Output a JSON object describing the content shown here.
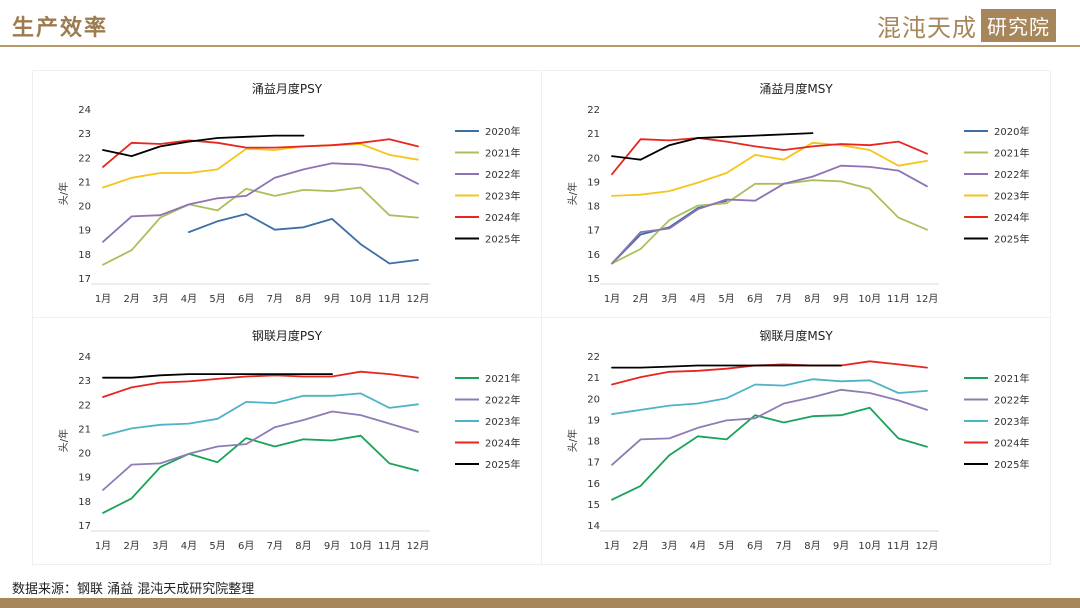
{
  "header": {
    "title": "生产效率",
    "logo_main": "混沌天成",
    "logo_box": "研究院"
  },
  "footer": {
    "source": "数据来源：钢联 涌益 混沌天成研究院整理"
  },
  "colors": {
    "2020年": "#3b6fa5",
    "2021年": "#a9c05a",
    "2022年": "#8e72b4",
    "2023年": "#f5c518",
    "2024年": "#e8261f",
    "2025年": "#000000",
    "gl2021年": "#1aa35a",
    "gl2022年": "#8f7bb5",
    "gl2023年": "#4fb3c7",
    "gl2024年": "#e8261f",
    "gl2025年": "#000000"
  },
  "chart_data": [
    {
      "type": "line",
      "title": "涌益月度PSY",
      "ylabel": "头/年",
      "categories": [
        "1月",
        "2月",
        "3月",
        "4月",
        "5月",
        "6月",
        "7月",
        "8月",
        "9月",
        "10月",
        "11月",
        "12月"
      ],
      "ylim": [
        17,
        24
      ],
      "yticks": [
        17,
        18,
        19,
        20,
        21,
        22,
        23,
        24
      ],
      "legend_position": "right",
      "series": [
        {
          "name": "2020年",
          "color": "#3b6fa5",
          "values": [
            null,
            null,
            null,
            18.9,
            19.35,
            19.65,
            19.0,
            19.1,
            19.45,
            18.4,
            17.6,
            17.75
          ]
        },
        {
          "name": "2021年",
          "color": "#a9c05a",
          "values": [
            17.55,
            18.15,
            19.5,
            20.05,
            19.8,
            20.7,
            20.4,
            20.65,
            20.6,
            20.75,
            19.6,
            19.5
          ]
        },
        {
          "name": "2022年",
          "color": "#8e72b4",
          "values": [
            18.5,
            19.55,
            19.6,
            20.05,
            20.3,
            20.4,
            21.15,
            21.5,
            21.75,
            21.7,
            21.5,
            20.9
          ]
        },
        {
          "name": "2023年",
          "color": "#f5c518",
          "values": [
            20.75,
            21.15,
            21.35,
            21.35,
            21.5,
            22.35,
            22.3,
            22.45,
            22.5,
            22.55,
            22.1,
            21.9
          ]
        },
        {
          "name": "2024年",
          "color": "#e8261f",
          "values": [
            21.6,
            22.6,
            22.55,
            22.7,
            22.6,
            22.4,
            22.4,
            22.45,
            22.5,
            22.6,
            22.75,
            22.45
          ]
        },
        {
          "name": "2025年",
          "color": "#000000",
          "values": [
            22.3,
            22.05,
            22.45,
            22.65,
            22.8,
            22.85,
            22.9,
            22.9,
            null,
            null,
            null,
            null
          ]
        }
      ]
    },
    {
      "type": "line",
      "title": "涌益月度MSY",
      "ylabel": "头/年",
      "categories": [
        "1月",
        "2月",
        "3月",
        "4月",
        "5月",
        "6月",
        "7月",
        "8月",
        "9月",
        "10月",
        "11月",
        "12月"
      ],
      "ylim": [
        15,
        22
      ],
      "yticks": [
        15,
        16,
        17,
        18,
        19,
        20,
        21,
        22
      ],
      "legend_position": "right",
      "series": [
        {
          "name": "2020年",
          "color": "#3b6fa5",
          "values": [
            15.6,
            16.8,
            17.1,
            17.9,
            18.2,
            null,
            null,
            null,
            null,
            null,
            null,
            null
          ]
        },
        {
          "name": "2021年",
          "color": "#a9c05a",
          "values": [
            15.6,
            16.2,
            17.4,
            18.0,
            18.1,
            18.9,
            18.9,
            19.05,
            19.0,
            18.7,
            17.5,
            17.0
          ]
        },
        {
          "name": "2022年",
          "color": "#8e72b4",
          "values": [
            15.6,
            16.9,
            17.05,
            17.85,
            18.25,
            18.2,
            18.9,
            19.2,
            19.65,
            19.6,
            19.45,
            18.8
          ]
        },
        {
          "name": "2023年",
          "color": "#f5c518",
          "values": [
            18.4,
            18.45,
            18.6,
            18.95,
            19.35,
            20.1,
            19.9,
            20.6,
            20.5,
            20.3,
            19.65,
            19.85
          ]
        },
        {
          "name": "2024年",
          "color": "#e8261f",
          "values": [
            19.3,
            20.75,
            20.7,
            20.8,
            20.65,
            20.45,
            20.3,
            20.45,
            20.55,
            20.5,
            20.65,
            20.15
          ]
        },
        {
          "name": "2025年",
          "color": "#000000",
          "values": [
            20.05,
            19.9,
            20.5,
            20.8,
            20.85,
            20.9,
            20.95,
            21.0,
            null,
            null,
            null,
            null
          ]
        }
      ]
    },
    {
      "type": "line",
      "title": "钢联月度PSY",
      "ylabel": "头/年",
      "categories": [
        "1月",
        "2月",
        "3月",
        "4月",
        "5月",
        "6月",
        "7月",
        "8月",
        "9月",
        "10月",
        "11月",
        "12月"
      ],
      "ylim": [
        17,
        24
      ],
      "yticks": [
        17,
        18,
        19,
        20,
        21,
        22,
        23,
        24
      ],
      "legend_position": "right",
      "series": [
        {
          "name": "2021年",
          "color": "#1aa35a",
          "values": [
            17.5,
            18.1,
            19.4,
            19.95,
            19.6,
            20.6,
            20.25,
            20.55,
            20.5,
            20.7,
            19.55,
            19.25
          ]
        },
        {
          "name": "2022年",
          "color": "#8f7bb5",
          "values": [
            18.45,
            19.5,
            19.55,
            19.95,
            20.25,
            20.35,
            21.05,
            21.35,
            21.7,
            21.55,
            21.2,
            20.85
          ]
        },
        {
          "name": "2023年",
          "color": "#4fb3c7",
          "values": [
            20.7,
            21.0,
            21.15,
            21.2,
            21.4,
            22.1,
            22.05,
            22.35,
            22.35,
            22.45,
            21.85,
            22.0
          ]
        },
        {
          "name": "2024年",
          "color": "#e8261f",
          "values": [
            22.3,
            22.7,
            22.9,
            22.95,
            23.05,
            23.15,
            23.2,
            23.15,
            23.15,
            23.35,
            23.25,
            23.1
          ]
        },
        {
          "name": "2025年",
          "color": "#000000",
          "values": [
            23.1,
            23.1,
            23.2,
            23.25,
            23.25,
            23.25,
            23.25,
            23.25,
            23.25,
            null,
            null,
            null
          ]
        }
      ]
    },
    {
      "type": "line",
      "title": "钢联月度MSY",
      "ylabel": "头/年",
      "categories": [
        "1月",
        "2月",
        "3月",
        "4月",
        "5月",
        "6月",
        "7月",
        "8月",
        "9月",
        "10月",
        "11月",
        "12月"
      ],
      "ylim": [
        14,
        22
      ],
      "yticks": [
        14,
        15,
        16,
        17,
        18,
        19,
        20,
        21,
        22
      ],
      "legend_position": "right",
      "series": [
        {
          "name": "2021年",
          "color": "#1aa35a",
          "values": [
            15.2,
            15.85,
            17.3,
            18.2,
            18.05,
            19.2,
            18.85,
            19.15,
            19.2,
            19.55,
            18.1,
            17.7
          ]
        },
        {
          "name": "2022年",
          "color": "#8f7bb5",
          "values": [
            16.85,
            18.05,
            18.1,
            18.6,
            18.95,
            19.05,
            19.75,
            20.05,
            20.4,
            20.25,
            19.9,
            19.45
          ]
        },
        {
          "name": "2023年",
          "color": "#4fb3c7",
          "values": [
            19.25,
            19.45,
            19.65,
            19.75,
            20.0,
            20.65,
            20.6,
            20.9,
            20.8,
            20.85,
            20.25,
            20.35
          ]
        },
        {
          "name": "2024年",
          "color": "#e8261f",
          "values": [
            20.65,
            21.0,
            21.25,
            21.3,
            21.4,
            21.55,
            21.6,
            21.55,
            21.55,
            21.75,
            21.6,
            21.45
          ]
        },
        {
          "name": "2025年",
          "color": "#000000",
          "values": [
            21.45,
            21.45,
            21.5,
            21.55,
            21.55,
            21.55,
            21.55,
            21.55,
            21.55,
            null,
            null,
            null
          ]
        }
      ]
    }
  ]
}
